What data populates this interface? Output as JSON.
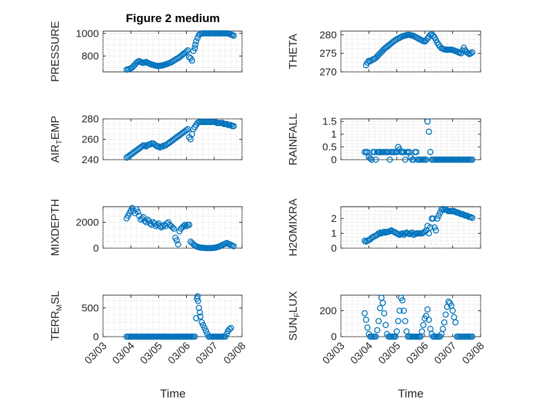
{
  "figure_title": "Figure 2 medium",
  "x_axis_label": "Time",
  "x_tick_labels": [
    "03/03",
    "03/04",
    "03/05",
    "03/06",
    "03/07",
    "03/08"
  ],
  "marker_color": "#0072BD",
  "chart_data": [
    {
      "type": "scatter",
      "id": "pressure",
      "ylabel": "PRESSURE",
      "title": "Figure 2 medium",
      "xlim": [
        3.0,
        8.0
      ],
      "ylim": [
        660,
        1020
      ],
      "yticks": [
        800,
        1000
      ],
      "ytick_labels": [
        "800",
        "1000"
      ],
      "x": [
        3.85,
        3.9,
        3.95,
        4.0,
        4.05,
        4.1,
        4.15,
        4.2,
        4.25,
        4.3,
        4.35,
        4.4,
        4.45,
        4.5,
        4.55,
        4.6,
        4.65,
        4.7,
        4.75,
        4.8,
        4.85,
        4.9,
        4.95,
        5.0,
        5.05,
        5.1,
        5.15,
        5.2,
        5.25,
        5.3,
        5.35,
        5.4,
        5.45,
        5.5,
        5.55,
        5.6,
        5.65,
        5.7,
        5.75,
        5.8,
        5.85,
        5.9,
        5.95,
        6.0,
        6.05,
        6.1,
        6.15,
        6.2,
        6.25,
        6.3,
        6.32,
        6.35,
        6.4,
        6.45,
        6.5,
        6.55,
        6.6,
        6.65,
        6.7,
        6.75,
        6.8,
        6.85,
        6.9,
        6.95,
        7.0,
        7.05,
        7.1,
        7.15,
        7.2,
        7.25,
        7.3,
        7.35,
        7.4,
        7.45,
        7.5,
        7.55,
        7.6,
        7.65,
        7.7
      ],
      "y": [
        680,
        682,
        686,
        692,
        700,
        712,
        725,
        740,
        750,
        755,
        748,
        742,
        740,
        745,
        748,
        740,
        735,
        730,
        725,
        722,
        718,
        715,
        712,
        712,
        714,
        716,
        718,
        722,
        726,
        730,
        735,
        740,
        745,
        752,
        760,
        768,
        775,
        782,
        790,
        800,
        810,
        820,
        830,
        840,
        850,
        790,
        780,
        760,
        845,
        870,
        900,
        930,
        960,
        985,
        995,
        1000,
        1000,
        1000,
        1000,
        1000,
        1000,
        1000,
        1000,
        1000,
        1000,
        1000,
        1000,
        1000,
        1000,
        1000,
        1000,
        1000,
        1000,
        1000,
        1000,
        995,
        990,
        985,
        980
      ]
    },
    {
      "type": "scatter",
      "id": "theta",
      "ylabel": "THETA",
      "xlim": [
        3.0,
        8.0
      ],
      "ylim": [
        270,
        281
      ],
      "yticks": [
        270,
        275,
        280
      ],
      "ytick_labels": [
        "270",
        "275",
        "280"
      ],
      "x": [
        3.9,
        3.95,
        4.0,
        4.05,
        4.1,
        4.15,
        4.2,
        4.25,
        4.3,
        4.35,
        4.4,
        4.45,
        4.5,
        4.55,
        4.6,
        4.65,
        4.7,
        4.75,
        4.8,
        4.85,
        4.9,
        4.95,
        5.0,
        5.05,
        5.1,
        5.15,
        5.2,
        5.25,
        5.3,
        5.35,
        5.4,
        5.45,
        5.5,
        5.55,
        5.6,
        5.65,
        5.7,
        5.75,
        5.8,
        5.85,
        5.9,
        5.95,
        6.0,
        6.05,
        6.1,
        6.15,
        6.2,
        6.25,
        6.3,
        6.35,
        6.4,
        6.45,
        6.5,
        6.55,
        6.6,
        6.65,
        6.7,
        6.75,
        6.8,
        6.85,
        6.9,
        6.95,
        7.0,
        7.05,
        7.1,
        7.15,
        7.2,
        7.25,
        7.3,
        7.35,
        7.4,
        7.45,
        7.5,
        7.55,
        7.6,
        7.65,
        7.7
      ],
      "y": [
        271.8,
        272.5,
        273,
        272.9,
        273.1,
        273.4,
        273.5,
        273.8,
        274.2,
        274.6,
        275,
        275.4,
        275.8,
        276.2,
        276.5,
        276.8,
        277.1,
        277.4,
        277.7,
        278,
        278.3,
        278.6,
        278.8,
        279,
        279.2,
        279.4,
        279.6,
        279.7,
        279.8,
        279.9,
        280,
        280,
        279.9,
        279.8,
        279.7,
        279.5,
        279.3,
        279.1,
        278.9,
        278.7,
        278.5,
        278.3,
        278.2,
        278.5,
        279,
        279.5,
        280,
        280.2,
        279.8,
        279.3,
        278.6,
        277.9,
        277.3,
        276.8,
        276.4,
        276.2,
        276.1,
        276,
        276,
        276,
        276,
        276,
        275.9,
        275.8,
        275.6,
        275.5,
        275.3,
        275.2,
        275,
        275.8,
        276.5,
        275.8,
        275.3,
        275,
        274.8,
        275,
        275.3
      ]
    },
    {
      "type": "scatter",
      "id": "air_temp",
      "ylabel": "AIR_T EMP",
      "ylabel_main": "AIR",
      "ylabel_sub": "T",
      "ylabel_rest": "EMP",
      "xlim": [
        3.0,
        8.0
      ],
      "ylim": [
        240,
        280
      ],
      "yticks": [
        240,
        260,
        280
      ],
      "ytick_labels": [
        "240",
        "260",
        "280"
      ],
      "x": [
        3.85,
        3.9,
        3.95,
        4.0,
        4.05,
        4.1,
        4.15,
        4.2,
        4.25,
        4.3,
        4.35,
        4.4,
        4.45,
        4.5,
        4.55,
        4.6,
        4.65,
        4.7,
        4.75,
        4.8,
        4.85,
        4.9,
        4.95,
        5.0,
        5.05,
        5.1,
        5.15,
        5.2,
        5.25,
        5.3,
        5.35,
        5.4,
        5.45,
        5.5,
        5.55,
        5.6,
        5.65,
        5.7,
        5.75,
        5.8,
        5.85,
        5.9,
        5.95,
        6.0,
        6.05,
        6.1,
        6.15,
        6.2,
        6.25,
        6.3,
        6.35,
        6.4,
        6.45,
        6.5,
        6.55,
        6.6,
        6.65,
        6.7,
        6.75,
        6.8,
        6.85,
        6.9,
        6.95,
        7.0,
        7.05,
        7.1,
        7.15,
        7.2,
        7.25,
        7.3,
        7.35,
        7.4,
        7.45,
        7.5,
        7.55,
        7.6,
        7.65,
        7.7
      ],
      "y": [
        242,
        243,
        244,
        245,
        246,
        247,
        248,
        249,
        250,
        251,
        252,
        253,
        254,
        254,
        253,
        254,
        255,
        255,
        256,
        256,
        255,
        254,
        253,
        253,
        252,
        253,
        253,
        254,
        254,
        255,
        256,
        257,
        258,
        259,
        260,
        261,
        262,
        263,
        264,
        265,
        266,
        267,
        268,
        269,
        270,
        262,
        260,
        265,
        270,
        272,
        274,
        276,
        277,
        277,
        277,
        277,
        277,
        277,
        277,
        277,
        277,
        277,
        277,
        277,
        277,
        276,
        276,
        276,
        276,
        276,
        275,
        275,
        275,
        274,
        274,
        274,
        273,
        273
      ]
    },
    {
      "type": "scatter",
      "id": "rainfall",
      "ylabel": "RAINFALL",
      "xlim": [
        3.0,
        8.0
      ],
      "ylim": [
        0,
        1.6
      ],
      "yticks": [
        0,
        0.5,
        1,
        1.5
      ],
      "ytick_labels": [
        "0",
        "0.5",
        "1",
        "1.5"
      ],
      "x": [
        3.85,
        3.9,
        3.95,
        4.0,
        4.05,
        4.1,
        4.15,
        4.2,
        4.25,
        4.3,
        4.35,
        4.4,
        4.45,
        4.5,
        4.55,
        4.6,
        4.65,
        4.7,
        4.75,
        4.8,
        4.85,
        4.9,
        4.95,
        5.0,
        5.05,
        5.1,
        5.15,
        5.2,
        5.25,
        5.3,
        5.35,
        5.4,
        5.45,
        5.5,
        5.55,
        5.6,
        5.65,
        5.7,
        5.75,
        5.8,
        5.85,
        5.9,
        5.95,
        6.0,
        6.05,
        6.1,
        6.15,
        6.2,
        6.25,
        6.3,
        6.35,
        6.4,
        6.45,
        6.5,
        6.55,
        6.6,
        6.65,
        6.7,
        6.75,
        6.8,
        6.85,
        6.9,
        6.95,
        7.0,
        7.05,
        7.1,
        7.15,
        7.2,
        7.25,
        7.3,
        7.35,
        7.4,
        7.45,
        7.5,
        7.55,
        7.6,
        7.65,
        7.7
      ],
      "y": [
        0.3,
        0.3,
        0.3,
        0.1,
        0.05,
        0,
        0.3,
        0.3,
        0,
        0.3,
        0.3,
        0.3,
        0.3,
        0.3,
        0.3,
        0.3,
        0.3,
        0.3,
        0,
        0.3,
        0.3,
        0.3,
        0.3,
        0.3,
        0.5,
        0.4,
        0.3,
        0.3,
        0.3,
        0,
        0.3,
        0.3,
        0.3,
        0.1,
        0,
        0,
        0.3,
        0.3,
        0,
        0,
        0,
        0,
        0,
        0,
        0,
        1.5,
        1.1,
        0.3,
        0,
        0,
        0,
        0,
        0,
        0,
        0,
        0,
        0,
        0,
        0,
        0,
        0,
        0,
        0,
        0,
        0,
        0,
        0,
        0,
        0,
        0,
        0,
        0,
        0,
        0,
        0,
        0,
        0,
        0
      ]
    },
    {
      "type": "scatter",
      "id": "mixdepth",
      "ylabel": "MIXDEPTH",
      "xlim": [
        3.0,
        8.0
      ],
      "ylim": [
        0,
        3200
      ],
      "yticks": [
        0,
        2000
      ],
      "ytick_labels": [
        "0",
        "2000"
      ],
      "x": [
        3.85,
        3.9,
        3.95,
        4.0,
        4.05,
        4.1,
        4.15,
        4.2,
        4.25,
        4.3,
        4.35,
        4.4,
        4.45,
        4.5,
        4.55,
        4.6,
        4.65,
        4.7,
        4.75,
        4.8,
        4.85,
        4.9,
        4.95,
        5.0,
        5.05,
        5.1,
        5.15,
        5.2,
        5.25,
        5.3,
        5.35,
        5.4,
        5.45,
        5.5,
        5.55,
        5.6,
        5.65,
        5.7,
        5.75,
        5.8,
        5.85,
        5.9,
        5.95,
        6.0,
        6.05,
        6.1,
        6.15,
        6.2,
        6.25,
        6.3,
        6.35,
        6.4,
        6.45,
        6.5,
        6.55,
        6.6,
        6.65,
        6.7,
        6.75,
        6.8,
        6.85,
        6.9,
        6.95,
        7.0,
        7.05,
        7.1,
        7.15,
        7.2,
        7.25,
        7.3,
        7.35,
        7.4,
        7.45,
        7.5,
        7.55,
        7.6,
        7.65,
        7.7
      ],
      "y": [
        2300,
        2500,
        2700,
        2900,
        3100,
        2900,
        2700,
        3000,
        2800,
        2500,
        2200,
        2300,
        2400,
        2100,
        2000,
        2200,
        2100,
        1900,
        1800,
        2000,
        1900,
        1700,
        1800,
        1900,
        1700,
        1600,
        1700,
        1800,
        1700,
        1900,
        2000,
        1800,
        1700,
        1600,
        1500,
        800,
        600,
        300,
        1300,
        1500,
        1600,
        1700,
        1800,
        1700,
        1800,
        1800,
        500,
        400,
        300,
        200,
        150,
        100,
        80,
        50,
        40,
        30,
        20,
        10,
        10,
        10,
        10,
        10,
        20,
        30,
        50,
        80,
        100,
        150,
        200,
        250,
        300,
        350,
        400,
        350,
        300,
        250,
        200,
        150
      ]
    },
    {
      "type": "scatter",
      "id": "h2omixra",
      "ylabel": "H2OMIXRA",
      "xlim": [
        3.0,
        8.0
      ],
      "ylim": [
        0,
        2.8
      ],
      "yticks": [
        0,
        1,
        2
      ],
      "ytick_labels": [
        "0",
        "1",
        "2"
      ],
      "x": [
        3.85,
        3.9,
        3.95,
        4.0,
        4.05,
        4.1,
        4.15,
        4.2,
        4.25,
        4.3,
        4.35,
        4.4,
        4.45,
        4.5,
        4.55,
        4.6,
        4.65,
        4.7,
        4.75,
        4.8,
        4.85,
        4.9,
        4.95,
        5.0,
        5.05,
        5.1,
        5.15,
        5.2,
        5.25,
        5.3,
        5.35,
        5.4,
        5.45,
        5.5,
        5.55,
        5.6,
        5.65,
        5.7,
        5.75,
        5.8,
        5.85,
        5.9,
        5.95,
        6.0,
        6.05,
        6.1,
        6.15,
        6.2,
        6.25,
        6.3,
        6.35,
        6.4,
        6.45,
        6.5,
        6.55,
        6.6,
        6.65,
        6.7,
        6.75,
        6.8,
        6.85,
        6.9,
        6.95,
        7.0,
        7.05,
        7.1,
        7.15,
        7.2,
        7.25,
        7.3,
        7.35,
        7.4,
        7.45,
        7.5,
        7.55,
        7.6,
        7.65,
        7.7
      ],
      "y": [
        0.5,
        0.45,
        0.5,
        0.55,
        0.6,
        0.7,
        0.75,
        0.8,
        0.85,
        0.9,
        1.0,
        1.05,
        1.0,
        1.05,
        1.1,
        1.05,
        1.1,
        1.1,
        1.15,
        1.2,
        1.15,
        1.1,
        1.05,
        1.0,
        0.95,
        0.9,
        0.95,
        1.0,
        0.9,
        1.0,
        1.05,
        1.0,
        0.95,
        1.0,
        1.05,
        0.9,
        0.95,
        1.0,
        1.0,
        1.0,
        1.0,
        1.0,
        1.05,
        1.1,
        1.2,
        1.5,
        1.0,
        1.4,
        2.0,
        2.0,
        1.4,
        1.2,
        2.0,
        2.2,
        2.4,
        2.6,
        2.65,
        2.6,
        2.6,
        2.55,
        2.5,
        2.5,
        2.5,
        2.5,
        2.5,
        2.45,
        2.4,
        2.4,
        2.35,
        2.3,
        2.3,
        2.25,
        2.2,
        2.2,
        2.15,
        2.1,
        2.1,
        2.05
      ]
    },
    {
      "type": "scatter",
      "id": "terr_msl",
      "ylabel": "TERR_M SL",
      "ylabel_main": "TERR",
      "ylabel_sub": "M",
      "ylabel_rest": "SL",
      "xlim": [
        3.0,
        8.0
      ],
      "ylim": [
        0,
        720
      ],
      "yticks": [
        0,
        500
      ],
      "ytick_labels": [
        "0",
        "500"
      ],
      "x": [
        3.85,
        3.9,
        3.95,
        4.0,
        4.05,
        4.1,
        4.15,
        4.2,
        4.25,
        4.3,
        4.35,
        4.4,
        4.45,
        4.5,
        4.55,
        4.6,
        4.65,
        4.7,
        4.75,
        4.8,
        4.85,
        4.9,
        4.95,
        5.0,
        5.05,
        5.1,
        5.15,
        5.2,
        5.25,
        5.3,
        5.35,
        5.4,
        5.45,
        5.5,
        5.55,
        5.6,
        5.65,
        5.7,
        5.75,
        5.8,
        5.85,
        5.9,
        5.95,
        6.0,
        6.05,
        6.1,
        6.15,
        6.2,
        6.25,
        6.3,
        6.35,
        6.38,
        6.4,
        6.42,
        6.45,
        6.48,
        6.5,
        6.55,
        6.6,
        6.65,
        6.7,
        6.75,
        6.8,
        6.85,
        6.9,
        6.95,
        7.0,
        7.05,
        7.1,
        7.15,
        7.2,
        7.25,
        7.3,
        7.35,
        7.4,
        7.45,
        7.5,
        7.55,
        7.6
      ],
      "y": [
        0,
        0,
        0,
        0,
        0,
        0,
        0,
        0,
        0,
        0,
        0,
        0,
        0,
        0,
        0,
        0,
        0,
        0,
        0,
        0,
        0,
        0,
        0,
        0,
        0,
        0,
        0,
        0,
        0,
        0,
        0,
        0,
        0,
        0,
        0,
        0,
        0,
        0,
        0,
        0,
        0,
        0,
        0,
        0,
        0,
        0,
        0,
        0,
        0,
        0,
        320,
        660,
        700,
        620,
        500,
        420,
        350,
        250,
        200,
        150,
        100,
        50,
        0,
        0,
        0,
        0,
        0,
        0,
        0,
        0,
        0,
        0,
        0,
        0,
        0,
        50,
        100,
        130,
        150
      ]
    },
    {
      "type": "scatter",
      "id": "sun_flux",
      "ylabel": "SUN_F LUX",
      "ylabel_main": "SUN",
      "ylabel_sub": "F",
      "ylabel_rest": "LUX",
      "xlim": [
        3.0,
        8.0
      ],
      "ylim": [
        0,
        320
      ],
      "yticks": [
        0,
        200
      ],
      "ytick_labels": [
        "0",
        "200"
      ],
      "x": [
        3.85,
        3.9,
        3.95,
        4.0,
        4.05,
        4.1,
        4.15,
        4.2,
        4.25,
        4.3,
        4.35,
        4.4,
        4.45,
        4.5,
        4.55,
        4.6,
        4.65,
        4.7,
        4.75,
        4.8,
        4.85,
        4.9,
        4.95,
        5.0,
        5.05,
        5.1,
        5.15,
        5.2,
        5.25,
        5.3,
        5.35,
        5.4,
        5.45,
        5.5,
        5.55,
        5.6,
        5.65,
        5.7,
        5.75,
        5.8,
        5.85,
        5.9,
        5.95,
        6.0,
        6.05,
        6.1,
        6.15,
        6.2,
        6.25,
        6.3,
        6.35,
        6.4,
        6.45,
        6.5,
        6.55,
        6.6,
        6.65,
        6.7,
        6.75,
        6.8,
        6.85,
        6.9,
        6.95,
        7.0,
        7.05,
        7.1,
        7.15,
        7.2,
        7.25,
        7.3,
        7.35,
        7.4,
        7.45,
        7.5,
        7.55,
        7.6,
        7.65,
        7.7
      ],
      "y": [
        180,
        130,
        70,
        20,
        0,
        0,
        0,
        0,
        0,
        50,
        120,
        220,
        300,
        260,
        180,
        90,
        20,
        0,
        0,
        0,
        0,
        0,
        0,
        40,
        120,
        200,
        300,
        280,
        200,
        120,
        40,
        0,
        0,
        0,
        0,
        0,
        0,
        0,
        0,
        0,
        0,
        40,
        90,
        140,
        160,
        210,
        130,
        60,
        20,
        0,
        0,
        0,
        0,
        0,
        0,
        20,
        60,
        110,
        170,
        230,
        270,
        260,
        240,
        200,
        150,
        110,
        0,
        0,
        0,
        0,
        0,
        0,
        0,
        0,
        0,
        0,
        0,
        0
      ]
    }
  ]
}
